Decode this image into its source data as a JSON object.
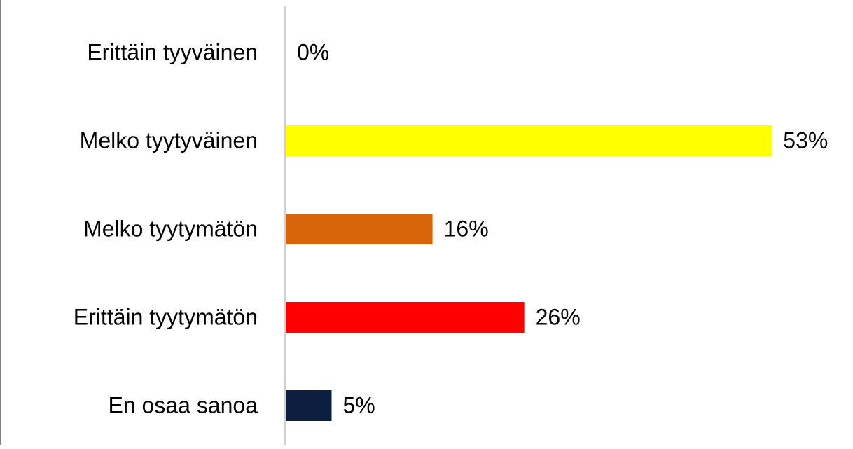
{
  "chart_data": {
    "type": "bar",
    "orientation": "horizontal",
    "categories": [
      "Erittäin tyyväinen",
      "Melko tyytyväinen",
      "Melko tyytymätön",
      "Erittäin tyytymätön",
      "En osaa sanoa"
    ],
    "values": [
      0,
      53,
      16,
      26,
      5
    ],
    "value_labels": [
      "0%",
      "53%",
      "16%",
      "26%",
      "5%"
    ],
    "colors": [
      "#ffff00",
      "#ffff00",
      "#d9650b",
      "#ff0000",
      "#0c1f40"
    ]
  }
}
